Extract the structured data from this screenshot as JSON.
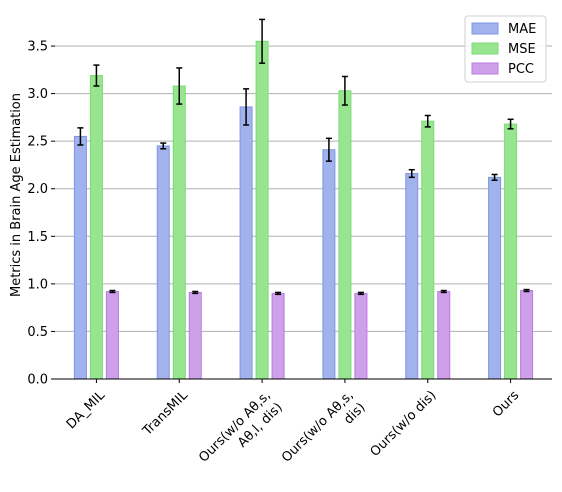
{
  "chart_data": {
    "type": "bar",
    "title": "",
    "xlabel": "",
    "ylabel": "Metrics in Brain Age Estimation",
    "ylim": [
      0,
      3.9
    ],
    "yticks": [
      0.0,
      0.5,
      1.0,
      1.5,
      2.0,
      2.5,
      3.0,
      3.5
    ],
    "ytick_labels": [
      "0.0",
      "0.5",
      "1.0",
      "1.5",
      "2.0",
      "2.5",
      "3.0",
      "3.5"
    ],
    "grid": "horizontal",
    "legend_position": "top-right",
    "categories": [
      [
        "DA_MIL"
      ],
      [
        "TransMIL"
      ],
      [
        "Ours(w/o Aθ,s,",
        "Aθ,l, dis)"
      ],
      [
        "Ours(w/o Aθ,s,",
        "dis)"
      ],
      [
        "Ours(w/o dis)"
      ],
      [
        "Ours"
      ]
    ],
    "series": [
      {
        "name": "MAE",
        "color": "#a1b2ec",
        "edge": "#7d97e4",
        "values": [
          2.55,
          2.45,
          2.86,
          2.41,
          2.16,
          2.12
        ],
        "errors": [
          0.09,
          0.03,
          0.19,
          0.12,
          0.04,
          0.03
        ]
      },
      {
        "name": "MSE",
        "color": "#98e590",
        "edge": "#7fd978",
        "values": [
          3.19,
          3.08,
          3.55,
          3.03,
          2.71,
          2.68
        ],
        "errors": [
          0.11,
          0.19,
          0.23,
          0.15,
          0.06,
          0.05
        ]
      },
      {
        "name": "PCC",
        "color": "#cfa0ea",
        "edge": "#b77be0",
        "values": [
          0.92,
          0.91,
          0.9,
          0.9,
          0.92,
          0.93
        ],
        "errors": [
          0.01,
          0.01,
          0.01,
          0.01,
          0.01,
          0.01
        ]
      }
    ]
  }
}
